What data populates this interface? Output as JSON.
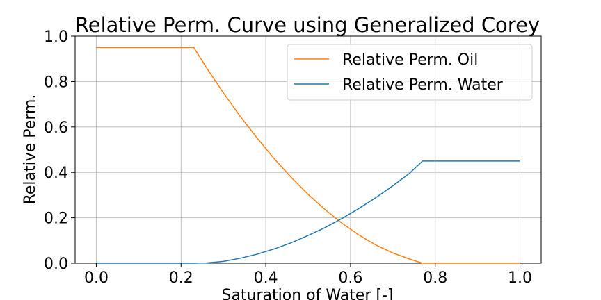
{
  "chart_data": {
    "type": "line",
    "title": "Relative Perm. Curve using Generalized Corey",
    "xlabel": "Saturation of Water [-]",
    "ylabel": "Relative Perm.",
    "xlim": [
      -0.05,
      1.05
    ],
    "ylim": [
      0.0,
      1.0
    ],
    "xticks": [
      0.0,
      0.2,
      0.4,
      0.6,
      0.8,
      1.0
    ],
    "xtick_labels": [
      "0.0",
      "0.2",
      "0.4",
      "0.6",
      "0.8",
      "1.0"
    ],
    "yticks": [
      0.0,
      0.2,
      0.4,
      0.6,
      0.8,
      1.0
    ],
    "ytick_labels": [
      "0.0",
      "0.2",
      "0.4",
      "0.6",
      "0.8",
      "1.0"
    ],
    "grid": true,
    "legend": "top-right",
    "series": [
      {
        "name": "Relative Perm. Oil",
        "color": "#ff7f0e",
        "x": [
          0.0,
          0.23,
          0.26,
          0.3,
          0.34,
          0.38,
          0.42,
          0.46,
          0.5,
          0.54,
          0.58,
          0.62,
          0.66,
          0.7,
          0.74,
          0.77,
          0.8,
          0.9,
          1.0
        ],
        "y": [
          0.95,
          0.95,
          0.861,
          0.75,
          0.646,
          0.55,
          0.46,
          0.378,
          0.303,
          0.236,
          0.176,
          0.124,
          0.08,
          0.045,
          0.018,
          0.0,
          0.0,
          0.0,
          0.0
        ]
      },
      {
        "name": "Relative Perm. Water",
        "color": "#1f77b4",
        "x": [
          0.0,
          0.23,
          0.26,
          0.3,
          0.34,
          0.38,
          0.42,
          0.46,
          0.5,
          0.54,
          0.58,
          0.62,
          0.66,
          0.7,
          0.74,
          0.77,
          0.8,
          0.9,
          1.0
        ],
        "y": [
          0.0,
          0.0,
          0.001,
          0.008,
          0.022,
          0.04,
          0.063,
          0.09,
          0.122,
          0.157,
          0.197,
          0.241,
          0.289,
          0.341,
          0.397,
          0.45,
          0.45,
          0.45,
          0.45
        ]
      }
    ]
  }
}
